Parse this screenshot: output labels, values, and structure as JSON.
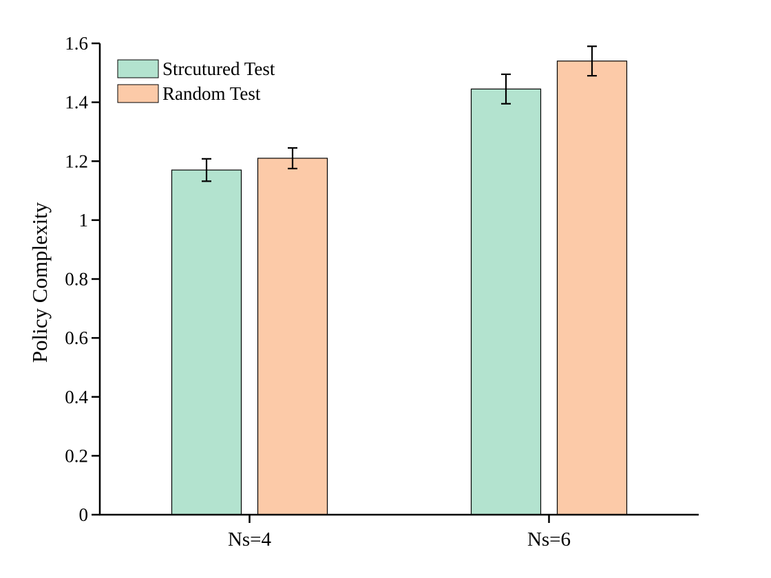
{
  "chart_data": {
    "type": "bar",
    "title": "",
    "xlabel": "",
    "ylabel": "Policy Complexity",
    "categories": [
      "Ns=4",
      "Ns=6"
    ],
    "series": [
      {
        "name": "Strcutured Test",
        "color": "#b3e3cf",
        "values": [
          1.17,
          1.445
        ],
        "errors": [
          0.038,
          0.05
        ]
      },
      {
        "name": "Random Test",
        "color": "#fccaa8",
        "values": [
          1.21,
          1.54
        ],
        "errors": [
          0.035,
          0.05
        ]
      }
    ],
    "ylim": [
      0,
      1.6
    ],
    "yticks": [
      "0",
      "0.2",
      "0.4",
      "0.6",
      "0.8",
      "1",
      "1.2",
      "1.4",
      "1.6"
    ],
    "grid": false,
    "legend_position": "top-left"
  }
}
